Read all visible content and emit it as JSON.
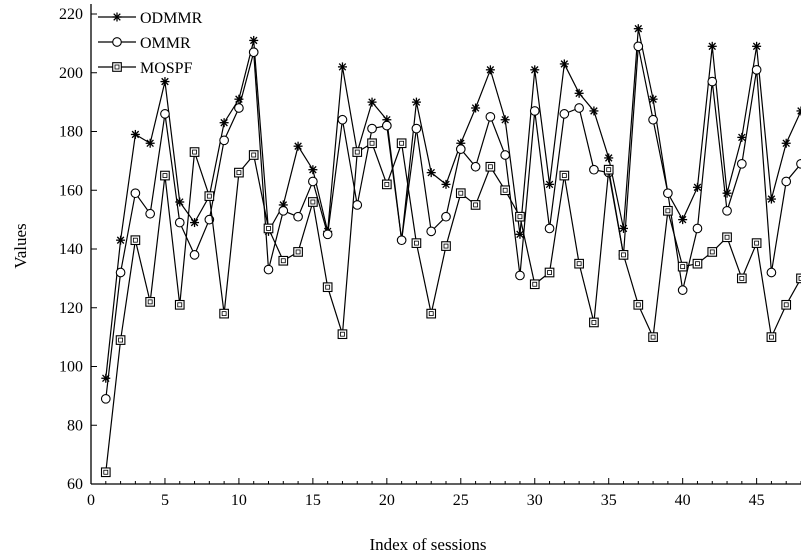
{
  "chart_data": {
    "type": "line",
    "title": "",
    "xlabel": "Index of sessions",
    "ylabel": "Values",
    "xlim": [
      0,
      48
    ],
    "ylim": [
      60,
      220
    ],
    "xticks": [
      0,
      5,
      10,
      15,
      20,
      25,
      30,
      35,
      40,
      45
    ],
    "yticks": [
      60,
      80,
      100,
      120,
      140,
      160,
      180,
      200,
      220
    ],
    "grid": false,
    "legend_position": "top-left",
    "x": [
      1,
      2,
      3,
      4,
      5,
      6,
      7,
      8,
      9,
      10,
      11,
      12,
      13,
      14,
      15,
      16,
      17,
      18,
      19,
      20,
      21,
      22,
      23,
      24,
      25,
      26,
      27,
      28,
      29,
      30,
      31,
      32,
      33,
      34,
      35,
      36,
      37,
      38,
      39,
      40,
      41,
      42,
      43,
      44,
      45,
      46,
      47,
      48
    ],
    "series": [
      {
        "name": "ODMMR",
        "marker": "star",
        "values": [
          96,
          143,
          179,
          176,
          197,
          156,
          149,
          158,
          183,
          191,
          211,
          146,
          155,
          175,
          167,
          146,
          202,
          173,
          190,
          184,
          143,
          190,
          166,
          162,
          176,
          188,
          201,
          184,
          145,
          201,
          162,
          203,
          193,
          187,
          171,
          147,
          215,
          191,
          159,
          150,
          161,
          209,
          159,
          178,
          209,
          157,
          176,
          187
        ]
      },
      {
        "name": "OMMR",
        "marker": "circle",
        "values": [
          89,
          132,
          159,
          152,
          186,
          149,
          138,
          150,
          177,
          188,
          207,
          133,
          153,
          151,
          163,
          145,
          184,
          155,
          181,
          182,
          143,
          181,
          146,
          151,
          174,
          168,
          185,
          172,
          131,
          187,
          147,
          186,
          188,
          167,
          166,
          138,
          209,
          184,
          159,
          126,
          147,
          197,
          153,
          169,
          201,
          132,
          163,
          169
        ]
      },
      {
        "name": "MOSPF",
        "marker": "square",
        "values": [
          64,
          109,
          143,
          122,
          165,
          121,
          173,
          158,
          118,
          166,
          172,
          147,
          136,
          139,
          156,
          127,
          111,
          173,
          176,
          162,
          176,
          142,
          118,
          141,
          159,
          155,
          168,
          160,
          151,
          128,
          132,
          165,
          135,
          115,
          167,
          138,
          121,
          110,
          153,
          134,
          135,
          139,
          144,
          130,
          142,
          110,
          121,
          130
        ]
      }
    ]
  }
}
